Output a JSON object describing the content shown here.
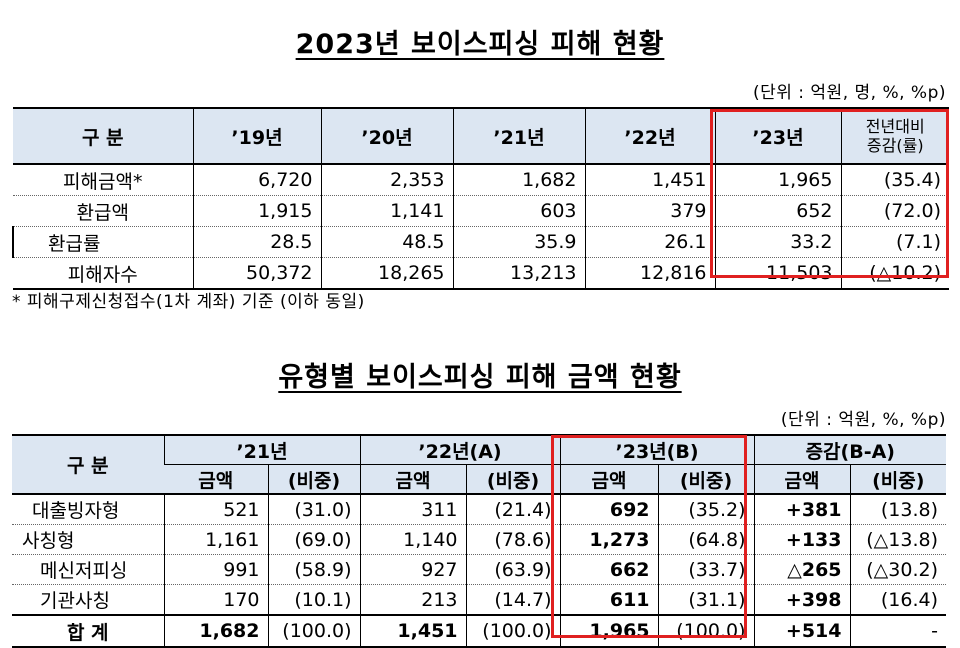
{
  "table1": {
    "title": "2023년 보이스피싱 피해 현황",
    "unit": "(단위 : 억원, 명, %, %p)",
    "header": {
      "label": "구 분",
      "years": [
        "’19년",
        "’20년",
        "’21년",
        "’22년",
        "’23년"
      ],
      "change_line1": "전년대비",
      "change_line2": "증감(률)"
    },
    "rows": [
      {
        "label": "피해금액*",
        "values": [
          "6,720",
          "2,353",
          "1,682",
          "1,451",
          "1,965"
        ],
        "change": "(35.4)"
      },
      {
        "label": "환급액",
        "values": [
          "1,915",
          "1,141",
          "603",
          "379",
          "652"
        ],
        "change": "(72.0)"
      },
      {
        "label": "환급률",
        "values": [
          "28.5",
          "48.5",
          "35.9",
          "26.1",
          "33.2"
        ],
        "change": "(7.1)"
      },
      {
        "label": "피해자수",
        "values": [
          "50,372",
          "18,265",
          "13,213",
          "12,816",
          "11,503"
        ],
        "change": "(△10.2)"
      }
    ],
    "footnote": "* 피해구제신청접수(1차 계좌) 기준 (이하 동일)"
  },
  "table2": {
    "title": "유형별 보이스피싱 피해 금액 현황",
    "unit": "(단위 : 억원, %, %p)",
    "header": {
      "label": "구 분",
      "groups": [
        "’21년",
        "’22년(A)",
        "’23년(B)",
        "증감(B-A)"
      ],
      "amount": "금액",
      "share": "(비중)"
    },
    "rows": [
      {
        "label": "대출빙자형",
        "values": [
          "521",
          "(31.0)",
          "311",
          "(21.4)",
          "692",
          "(35.2)",
          "+381",
          "(13.8)"
        ]
      },
      {
        "label": "사칭형",
        "values": [
          "1,161",
          "(69.0)",
          "1,140",
          "(78.6)",
          "1,273",
          "(64.8)",
          "+133",
          "(△13.8)"
        ]
      },
      {
        "label": "메신저피싱",
        "values": [
          "991",
          "(58.9)",
          "927",
          "(63.9)",
          "662",
          "(33.7)",
          "△265",
          "(△30.2)"
        ]
      },
      {
        "label": "기관사칭",
        "values": [
          "170",
          "(10.1)",
          "213",
          "(14.7)",
          "611",
          "(31.1)",
          "+398",
          "(16.4)"
        ]
      }
    ],
    "total": {
      "label": "합 계",
      "values": [
        "1,682",
        "(100.0)",
        "1,451",
        "(100.0)",
        "1,965",
        "(100.0)",
        "+514",
        "-"
      ]
    }
  },
  "colors": {
    "header_bg": "#dce6f2",
    "highlight": "#e02020"
  }
}
